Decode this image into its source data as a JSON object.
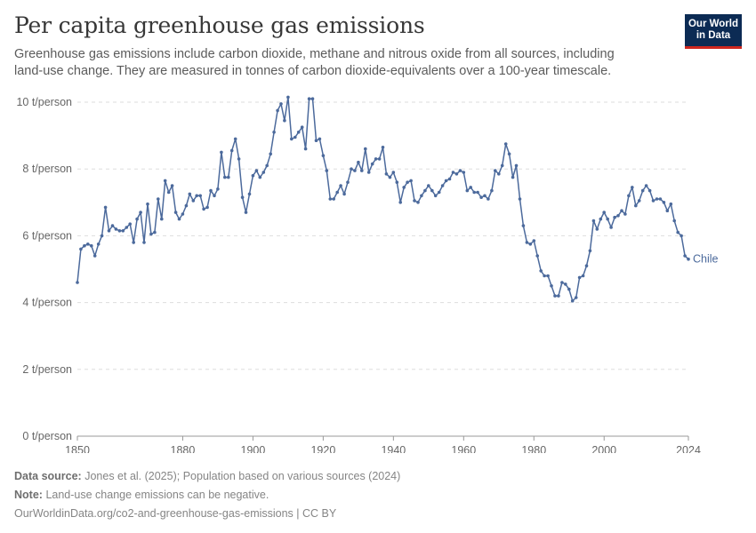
{
  "header": {
    "title": "Per capita greenhouse gas emissions",
    "subtitle": "Greenhouse gas emissions include carbon dioxide, methane and nitrous oxide from all sources, including land-use change. They are measured in tonnes of carbon dioxide-equivalents over a 100-year timescale.",
    "logo_line1": "Our World",
    "logo_line2": "in Data"
  },
  "footer": {
    "source_label": "Data source:",
    "source_text": "Jones et al. (2025); Population based on various sources (2024)",
    "note_label": "Note:",
    "note_text": "Land-use change emissions can be negative.",
    "url_text": "OurWorldinData.org/co2-and-greenhouse-gas-emissions | CC BY"
  },
  "colors": {
    "line": "#4c6a9c",
    "grid": "#dddddd",
    "logo_bg": "#0c2b54",
    "logo_accent": "#ce261e"
  },
  "chart_data": {
    "type": "line",
    "title": "Per capita greenhouse gas emissions",
    "ylim": [
      0,
      10
    ],
    "xlim": [
      1850,
      2024
    ],
    "x_ticks": [
      1850,
      1880,
      1900,
      1920,
      1940,
      1960,
      1980,
      2000,
      2024
    ],
    "y_ticks": [
      {
        "value": 0,
        "label": "0 t/person"
      },
      {
        "value": 2,
        "label": "2 t/person"
      },
      {
        "value": 4,
        "label": "4 t/person"
      },
      {
        "value": 6,
        "label": "6 t/person"
      },
      {
        "value": 8,
        "label": "8 t/person"
      },
      {
        "value": 10,
        "label": "10 t/person"
      }
    ],
    "grid": "horizontal dashed",
    "series": [
      {
        "name": "Chile",
        "x": [
          1850,
          1851,
          1852,
          1853,
          1854,
          1855,
          1856,
          1857,
          1858,
          1859,
          1860,
          1861,
          1862,
          1863,
          1864,
          1865,
          1866,
          1867,
          1868,
          1869,
          1870,
          1871,
          1872,
          1873,
          1874,
          1875,
          1876,
          1877,
          1878,
          1879,
          1880,
          1881,
          1882,
          1883,
          1884,
          1885,
          1886,
          1887,
          1888,
          1889,
          1890,
          1891,
          1892,
          1893,
          1894,
          1895,
          1896,
          1897,
          1898,
          1899,
          1900,
          1901,
          1902,
          1903,
          1904,
          1905,
          1906,
          1907,
          1908,
          1909,
          1910,
          1911,
          1912,
          1913,
          1914,
          1915,
          1916,
          1917,
          1918,
          1919,
          1920,
          1921,
          1922,
          1923,
          1924,
          1925,
          1926,
          1927,
          1928,
          1929,
          1930,
          1931,
          1932,
          1933,
          1934,
          1935,
          1936,
          1937,
          1938,
          1939,
          1940,
          1941,
          1942,
          1943,
          1944,
          1945,
          1946,
          1947,
          1948,
          1949,
          1950,
          1951,
          1952,
          1953,
          1954,
          1955,
          1956,
          1957,
          1958,
          1959,
          1960,
          1961,
          1962,
          1963,
          1964,
          1965,
          1966,
          1967,
          1968,
          1969,
          1970,
          1971,
          1972,
          1973,
          1974,
          1975,
          1976,
          1977,
          1978,
          1979,
          1980,
          1981,
          1982,
          1983,
          1984,
          1985,
          1986,
          1987,
          1988,
          1989,
          1990,
          1991,
          1992,
          1993,
          1994,
          1995,
          1996,
          1997,
          1998,
          1999,
          2000,
          2001,
          2002,
          2003,
          2004,
          2005,
          2006,
          2007,
          2008,
          2009,
          2010,
          2011,
          2012,
          2013,
          2014,
          2015,
          2016,
          2017,
          2018,
          2019,
          2020,
          2021,
          2022,
          2023,
          2024
        ],
        "y": [
          4.6,
          5.6,
          5.7,
          5.75,
          5.7,
          5.4,
          5.75,
          6.0,
          6.85,
          6.15,
          6.3,
          6.2,
          6.15,
          6.15,
          6.25,
          6.35,
          5.8,
          6.5,
          6.7,
          5.8,
          6.95,
          6.05,
          6.1,
          7.1,
          6.5,
          7.65,
          7.3,
          7.5,
          6.7,
          6.5,
          6.65,
          6.9,
          7.25,
          7.05,
          7.2,
          7.2,
          6.8,
          6.85,
          7.35,
          7.2,
          7.4,
          8.5,
          7.75,
          7.75,
          8.55,
          8.9,
          8.3,
          7.15,
          6.7,
          7.25,
          7.8,
          7.95,
          7.75,
          7.9,
          8.1,
          8.45,
          9.1,
          9.75,
          9.95,
          9.45,
          10.15,
          8.9,
          8.95,
          9.1,
          9.25,
          8.6,
          10.1,
          10.1,
          8.85,
          8.9,
          8.4,
          7.95,
          7.1,
          7.1,
          7.3,
          7.5,
          7.25,
          7.6,
          8.0,
          7.95,
          8.2,
          7.95,
          8.6,
          7.9,
          8.15,
          8.3,
          8.3,
          8.65,
          7.85,
          7.75,
          7.9,
          7.6,
          7.0,
          7.45,
          7.6,
          7.65,
          7.05,
          7.0,
          7.2,
          7.35,
          7.5,
          7.35,
          7.2,
          7.3,
          7.5,
          7.65,
          7.7,
          7.9,
          7.85,
          7.95,
          7.9,
          7.35,
          7.45,
          7.3,
          7.3,
          7.15,
          7.2,
          7.1,
          7.35,
          7.95,
          7.85,
          8.1,
          8.75,
          8.45,
          7.75,
          8.1,
          7.1,
          6.3,
          5.8,
          5.75,
          5.85,
          5.4,
          4.95,
          4.8,
          4.8,
          4.5,
          4.2,
          4.2,
          4.6,
          4.55,
          4.4,
          4.05,
          4.15,
          4.75,
          4.8,
          5.1,
          5.55,
          6.45,
          6.2,
          6.5,
          6.7,
          6.5,
          6.25,
          6.55,
          6.6,
          6.75,
          6.65,
          7.2,
          7.45,
          6.9,
          7.05,
          7.35,
          7.5,
          7.35,
          7.05,
          7.1,
          7.1,
          7.0,
          6.75,
          6.95,
          6.45,
          6.1,
          6.0,
          5.4,
          5.3
        ]
      }
    ]
  }
}
